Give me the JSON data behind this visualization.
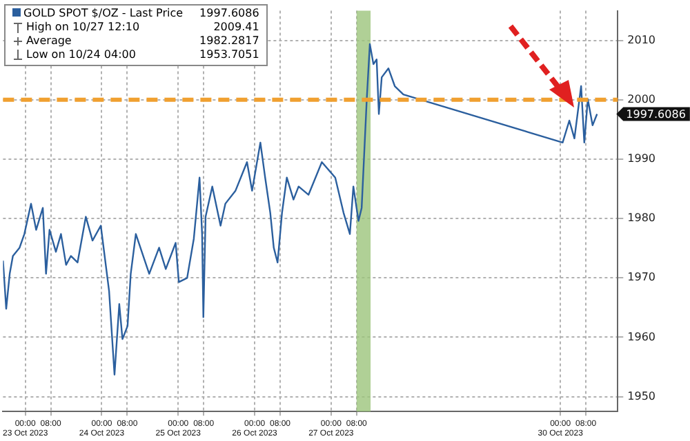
{
  "chart_data": {
    "type": "line",
    "x": [
      "2023-10-22T17:00",
      "2023-10-22T18:00",
      "2023-10-22T19:06",
      "2023-10-22T20:06",
      "2023-10-22T22:12",
      "2023-10-22T23:42",
      "2023-10-23T01:48",
      "2023-10-23T03:24",
      "2023-10-23T05:30",
      "2023-10-23T06:30",
      "2023-10-23T07:36",
      "2023-10-23T09:36",
      "2023-10-23T11:12",
      "2023-10-23T12:48",
      "2023-10-23T14:18",
      "2023-10-23T16:24",
      "2023-10-23T19:00",
      "2023-10-23T21:06",
      "2023-10-23T23:42",
      "2023-10-24T02:18",
      "2023-10-24T04:00",
      "2023-10-24T05:30",
      "2023-10-24T06:30",
      "2023-10-24T08:06",
      "2023-10-24T09:06",
      "2023-10-24T10:42",
      "2023-10-24T14:54",
      "2023-10-24T18:00",
      "2023-10-24T20:06",
      "2023-10-24T23:12",
      "2023-10-25T00:12",
      "2023-10-25T02:48",
      "2023-10-25T04:54",
      "2023-10-25T06:42",
      "2023-10-25T07:30",
      "2023-10-25T07:54",
      "2023-10-25T08:36",
      "2023-10-25T10:42",
      "2023-10-25T13:18",
      "2023-10-25T14:48",
      "2023-10-25T18:00",
      "2023-10-25T21:36",
      "2023-10-25T23:12",
      "2023-10-26T01:48",
      "2023-10-26T03:18",
      "2023-10-26T04:54",
      "2023-10-26T06:00",
      "2023-10-26T07:12",
      "2023-10-26T08:36",
      "2023-10-26T10:06",
      "2023-10-26T12:12",
      "2023-10-26T13:48",
      "2023-10-26T16:54",
      "2023-10-26T21:06",
      "2023-10-27T01:18",
      "2023-10-27T03:54",
      "2023-10-27T05:54",
      "2023-10-27T07:00",
      "2023-10-27T08:36",
      "2023-10-27T09:36",
      "2023-10-27T11:12",
      "2023-10-27T12:10",
      "2023-10-27T13:18",
      "2023-10-27T14:18",
      "2023-10-27T15:00",
      "2023-10-27T15:54",
      "2023-10-27T18:00",
      "2023-10-27T20:00",
      "2023-10-27T22:42",
      "2023-10-30T00:42",
      "2023-10-30T02:48",
      "2023-10-30T04:24",
      "2023-10-30T06:30",
      "2023-10-30T07:30",
      "2023-10-30T08:36",
      "2023-10-30T10:06",
      "2023-10-30T11:30"
    ],
    "series": [
      {
        "name": "GOLD SPOT $/OZ - Last Price",
        "color": "#2b5f9e",
        "values": [
          1972.9,
          1964.8,
          1970.7,
          1973.7,
          1975.1,
          1977.4,
          1982.5,
          1978.1,
          1981.8,
          1970.7,
          1978.1,
          1974.4,
          1977.4,
          1972.2,
          1973.7,
          1972.6,
          1980.3,
          1976.3,
          1978.8,
          1967.8,
          1953.7,
          1965.6,
          1959.7,
          1961.9,
          1970.7,
          1977.4,
          1970.7,
          1975.1,
          1971.5,
          1975.9,
          1969.3,
          1970.0,
          1976.6,
          1986.9,
          1977.4,
          1963.4,
          1980.3,
          1985.4,
          1978.8,
          1982.5,
          1984.7,
          1989.5,
          1984.7,
          1992.8,
          1986.9,
          1981.0,
          1975.1,
          1972.6,
          1981.0,
          1986.9,
          1983.2,
          1985.4,
          1984.0,
          1989.5,
          1986.9,
          1981.0,
          1977.4,
          1985.4,
          1979.6,
          1981.8,
          2000.1,
          2009.4,
          2006.0,
          2006.8,
          1997.6,
          2003.8,
          2005.3,
          2002.3,
          2000.9,
          1992.8,
          1996.5,
          1993.5,
          2002.3,
          1992.8,
          2000.1,
          1995.7,
          1997.6
        ]
      }
    ],
    "xlim": [
      "2023-10-22T17:00",
      "2023-10-30T18:00"
    ],
    "xticks": [
      {
        "value": "2023-10-23T00:00",
        "label": "00:00\n23 Oct 2023"
      },
      {
        "value": "2023-10-23T08:00",
        "label": "08:00"
      },
      {
        "value": "2023-10-24T00:00",
        "label": "00:00\n24 Oct 2023"
      },
      {
        "value": "2023-10-24T08:00",
        "label": "08:00"
      },
      {
        "value": "2023-10-25T00:00",
        "label": "00:00\n25 Oct 2023"
      },
      {
        "value": "2023-10-25T08:00",
        "label": "08:00"
      },
      {
        "value": "2023-10-26T00:00",
        "label": "00:00\n26 Oct 2023"
      },
      {
        "value": "2023-10-26T08:00",
        "label": "08:00"
      },
      {
        "value": "2023-10-27T00:00",
        "label": "00:00\n27 Oct 2023"
      },
      {
        "value": "2023-10-27T08:00",
        "label": "08:00"
      },
      {
        "value": "2023-10-30T00:00",
        "label": "00:00\n30 Oct 2023"
      },
      {
        "value": "2023-10-30T08:00",
        "label": "08:00"
      }
    ],
    "ylim": [
      1947.5,
      2015
    ],
    "yticks": [
      1950,
      1960,
      1970,
      1980,
      1990,
      2000,
      2010
    ],
    "grid": true,
    "legend": "top left",
    "marker": "none",
    "bands": [
      {
        "axis": "x",
        "from": "2023-10-27T08:00",
        "to": "2023-10-27T12:24",
        "color": "#9cc47c"
      }
    ],
    "ref_lines": [
      {
        "axis": "y",
        "value": 2000,
        "color": "#f0a030",
        "line_style": "dashed"
      }
    ],
    "annotations": [
      "1997.6086",
      "High on 10/27 12:10",
      "2009.41",
      "Average",
      "1982.2817",
      "Low on 10/24 04:00",
      "1953.7051"
    ]
  }
}
